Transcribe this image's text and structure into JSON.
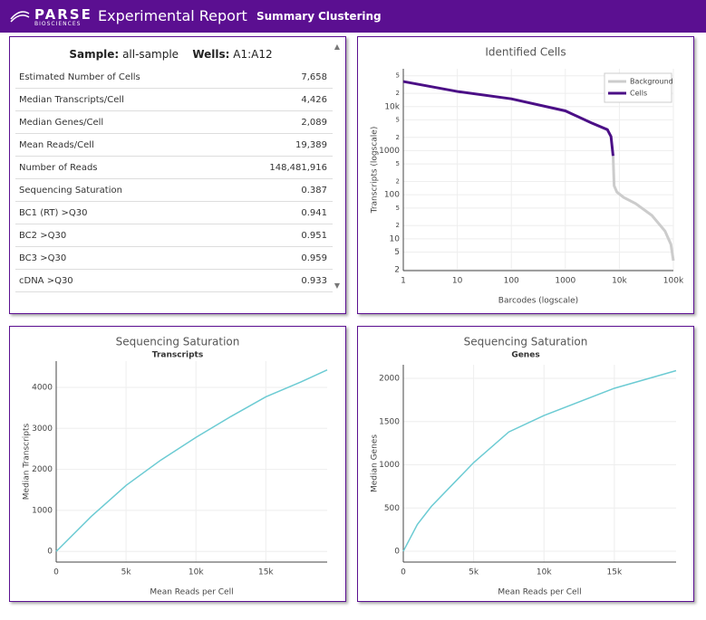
{
  "header": {
    "logo": "PARSE",
    "logo_sub": "BIOSCIENCES",
    "title": "Experimental Report",
    "nav": [
      "Summary",
      "Clustering"
    ]
  },
  "sample": {
    "sample_label": "Sample:",
    "sample": "all-sample",
    "wells_label": "Wells:",
    "wells": "A1:A12"
  },
  "table": {
    "rows": [
      [
        "Estimated Number of Cells",
        "7,658"
      ],
      [
        "Median Transcripts/Cell",
        "4,426"
      ],
      [
        "Median Genes/Cell",
        "2,089"
      ],
      [
        "Mean Reads/Cell",
        "19,389"
      ],
      [
        "Number of Reads",
        "148,481,916"
      ],
      [
        "Sequencing Saturation",
        "0.387"
      ],
      [
        "BC1 (RT) >Q30",
        "0.941"
      ],
      [
        "BC2 >Q30",
        "0.951"
      ],
      [
        "BC3 >Q30",
        "0.959"
      ],
      [
        "cDNA >Q30",
        "0.933"
      ]
    ]
  },
  "chart_data": [
    {
      "type": "line",
      "title": "Identified Cells",
      "x_label": "Barcodes (logscale)",
      "y_label": "Transcripts (logscale)",
      "xscale": "log",
      "yscale": "log",
      "grid": true,
      "legend": "top-right",
      "xlim": [
        1,
        100000
      ],
      "ylim": [
        1.9,
        72000
      ],
      "xticks": [
        1,
        10,
        100,
        1000,
        {
          "value": 10000,
          "label": "10k"
        },
        {
          "value": 100000,
          "label": "100k"
        }
      ],
      "yticks": [
        2,
        5,
        10,
        {
          "value": 20,
          "label": "2"
        },
        {
          "value": 50,
          "label": "5"
        },
        100,
        {
          "value": 200,
          "label": "2"
        },
        {
          "value": 500,
          "label": "5"
        },
        1000,
        {
          "value": 2000,
          "label": "2"
        },
        {
          "value": 5000,
          "label": "5"
        },
        {
          "value": 10000,
          "label": "10k"
        },
        {
          "value": 20000,
          "label": "2"
        },
        {
          "value": 50000,
          "label": "5"
        }
      ],
      "series": [
        {
          "name": "Background",
          "color": "#cccccc",
          "x": [
            7658,
            8000,
            9000,
            12000,
            20000,
            40000,
            70000,
            90000,
            100000
          ],
          "values": [
            760,
            160,
            115,
            87,
            63,
            34,
            15,
            7.5,
            3.2
          ]
        },
        {
          "name": "Cells",
          "color": "#4b0f86",
          "x": [
            1,
            10,
            100,
            1000,
            3000,
            6000,
            7000,
            7658
          ],
          "values": [
            37000,
            22000,
            15000,
            8000,
            4300,
            3000,
            2100,
            760
          ]
        }
      ]
    },
    {
      "type": "line",
      "title": "Sequencing Saturation",
      "subtitle": "Transcripts",
      "x_label": "Mean Reads per Cell",
      "y_label": "Median Transcripts",
      "grid": true,
      "xlim": [
        0,
        19389
      ],
      "ylim": [
        -260,
        4640
      ],
      "xticks": [
        0,
        {
          "value": 5000,
          "label": "5k"
        },
        {
          "value": 10000,
          "label": "10k"
        },
        {
          "value": 15000,
          "label": "15k"
        }
      ],
      "yticks": [
        0,
        1000,
        2000,
        3000,
        4000
      ],
      "series": [
        {
          "color": "#6ccbd3",
          "x": [
            0,
            2500,
            5000,
            7500,
            10000,
            12500,
            15000,
            17500,
            19389
          ],
          "values": [
            0,
            850,
            1610,
            2230,
            2780,
            3290,
            3770,
            4130,
            4426
          ]
        }
      ]
    },
    {
      "type": "line",
      "title": "Sequencing Saturation",
      "subtitle": "Genes",
      "x_label": "Mean Reads per Cell",
      "y_label": "Median Genes",
      "grid": true,
      "xlim": [
        0,
        19389
      ],
      "ylim": [
        -125,
        2157
      ],
      "xticks": [
        0,
        {
          "value": 5000,
          "label": "5k"
        },
        {
          "value": 10000,
          "label": "10k"
        },
        {
          "value": 15000,
          "label": "15k"
        }
      ],
      "yticks": [
        0,
        500,
        1000,
        1500,
        2000
      ],
      "series": [
        {
          "color": "#6ccbd3",
          "x": [
            0,
            1000,
            2000,
            5000,
            7500,
            10000,
            15000,
            19389
          ],
          "values": [
            0,
            310,
            520,
            1025,
            1380,
            1570,
            1885,
            2089
          ]
        }
      ]
    }
  ]
}
